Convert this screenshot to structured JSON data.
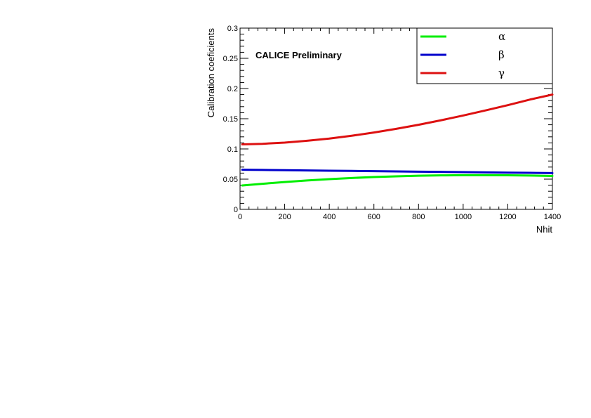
{
  "chart_data": {
    "type": "line",
    "title": "",
    "xlabel": "Nhit",
    "ylabel": "Calibration coeficients",
    "annotation": "CALICE Preliminary",
    "xlim": [
      0,
      1400
    ],
    "ylim": [
      0,
      0.3
    ],
    "x_ticks": [
      0,
      200,
      400,
      600,
      800,
      1000,
      1200,
      1400
    ],
    "y_ticks": [
      0,
      0.05,
      0.1,
      0.15,
      0.2,
      0.25,
      0.3
    ],
    "x_tick_labels": [
      "0",
      "200",
      "400",
      "600",
      "800",
      "1000",
      "1200",
      "1400"
    ],
    "y_tick_labels": [
      "0",
      "0.05",
      "0.1",
      "0.15",
      "0.2",
      "0.25",
      "0.3"
    ],
    "grid": false,
    "legend_position": "top-right",
    "series": [
      {
        "name": "α",
        "color": "#00ee00",
        "x": [
          10,
          100,
          200,
          300,
          400,
          500,
          600,
          700,
          800,
          900,
          1000,
          1100,
          1200,
          1300,
          1400
        ],
        "y": [
          0.0395,
          0.0423,
          0.0452,
          0.0478,
          0.05,
          0.0519,
          0.0535,
          0.0547,
          0.0556,
          0.0562,
          0.0565,
          0.0566,
          0.0564,
          0.056,
          0.0553
        ]
      },
      {
        "name": "β",
        "color": "#0000cc",
        "x": [
          10,
          100,
          200,
          300,
          400,
          500,
          600,
          700,
          800,
          900,
          1000,
          1100,
          1200,
          1300,
          1400
        ],
        "y": [
          0.0655,
          0.0652,
          0.0648,
          0.0644,
          0.064,
          0.0636,
          0.0632,
          0.0628,
          0.0624,
          0.062,
          0.0616,
          0.0612,
          0.0608,
          0.0604,
          0.06
        ]
      },
      {
        "name": "γ",
        "color": "#dd1111",
        "x": [
          10,
          100,
          200,
          300,
          400,
          500,
          600,
          700,
          800,
          900,
          1000,
          1100,
          1200,
          1300,
          1400
        ],
        "y": [
          0.1075,
          0.1085,
          0.1105,
          0.1135,
          0.1172,
          0.1218,
          0.1272,
          0.1333,
          0.14,
          0.1474,
          0.1553,
          0.1637,
          0.1725,
          0.1818,
          0.19
        ]
      }
    ]
  }
}
